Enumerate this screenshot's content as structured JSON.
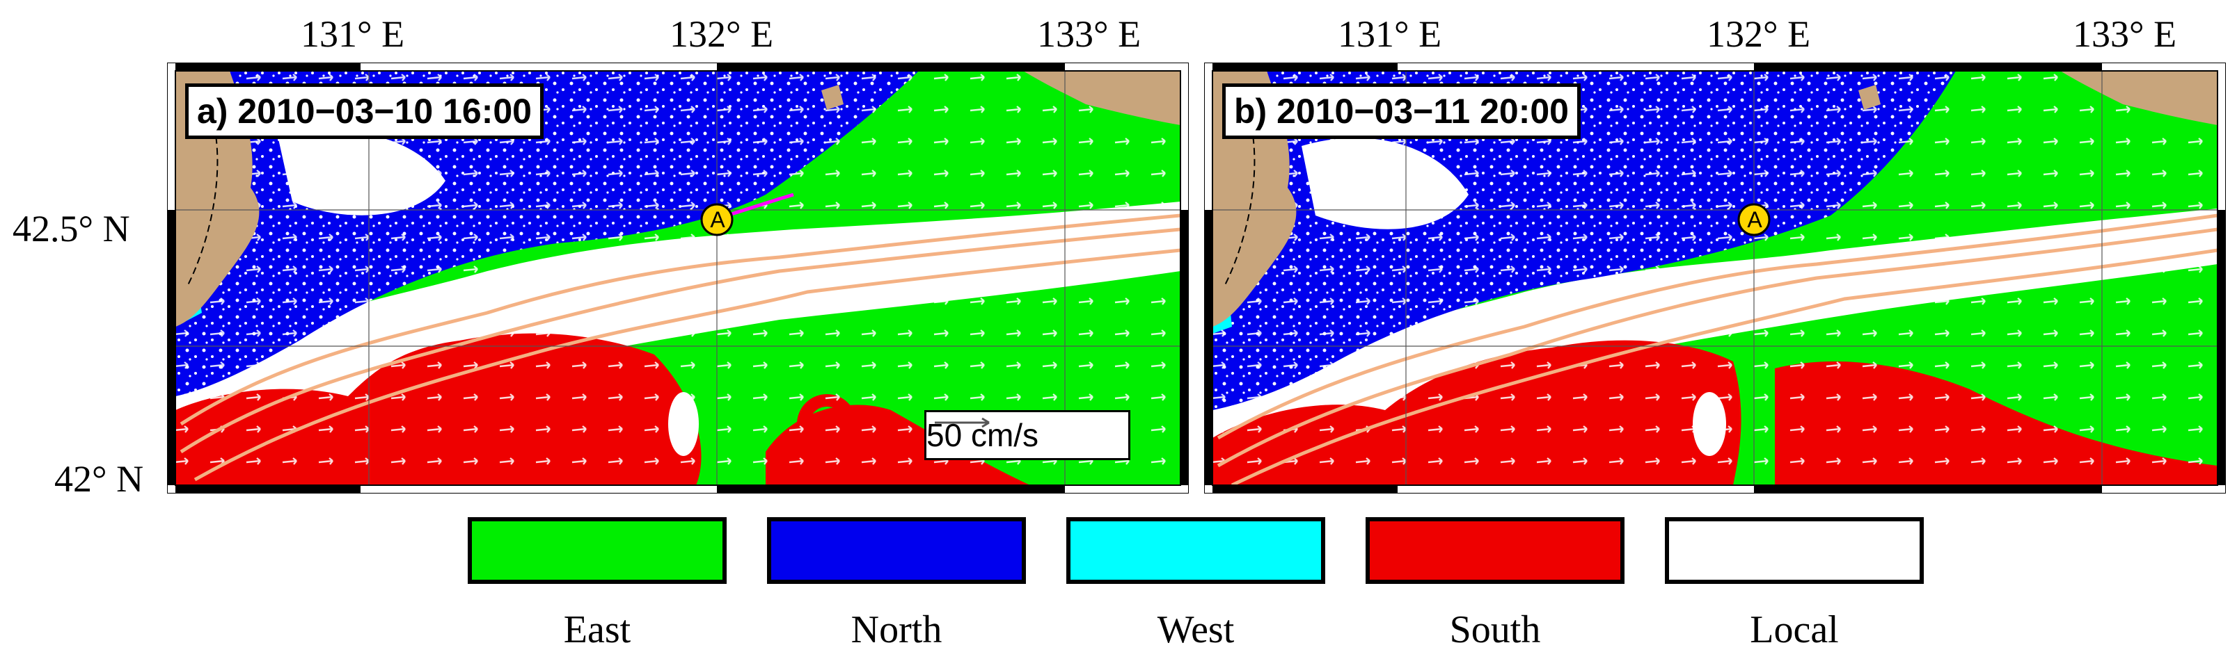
{
  "axes": {
    "lon_ticks": [
      "131° E",
      "132° E",
      "133° E"
    ],
    "lat_ticks": [
      "42.5° N",
      "42° N"
    ]
  },
  "panels": [
    {
      "title": "a) 2010−03−10 16:00",
      "marker": "A",
      "scale_label": "50 cm/s"
    },
    {
      "title": "b) 2010−03−11 20:00",
      "marker": "A"
    }
  ],
  "legend": [
    {
      "label": "East",
      "color": "#00ee00"
    },
    {
      "label": "North",
      "color": "#0000ee"
    },
    {
      "label": "West",
      "color": "#00ffff"
    },
    {
      "label": "South",
      "color": "#ee0000"
    },
    {
      "label": "Local",
      "color": "#ffffff"
    }
  ],
  "colors": {
    "land": "#c8a57c",
    "isobath": "#f4b183",
    "marker_fill": "#ffd700",
    "trajectory": "#ff00ff"
  }
}
